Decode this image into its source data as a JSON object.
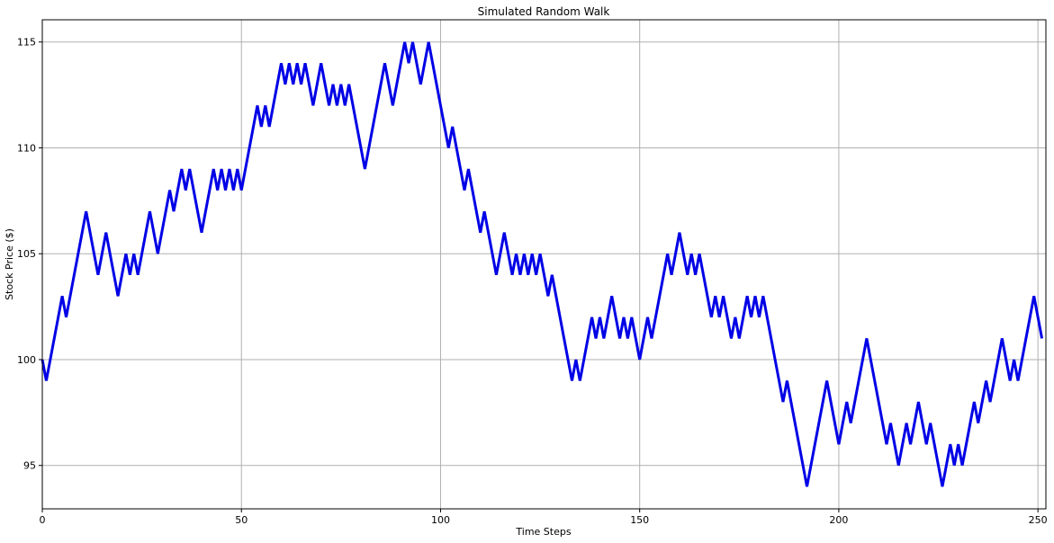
{
  "chart_data": {
    "type": "line",
    "title": "Simulated Random Walk",
    "x_label": "Time Steps",
    "y_label": "Stock Price ($)",
    "x": [
      0,
      1,
      2,
      3,
      4,
      5,
      6,
      7,
      8,
      9,
      10,
      11,
      12,
      13,
      14,
      15,
      16,
      17,
      18,
      19,
      20,
      21,
      22,
      23,
      24,
      25,
      26,
      27,
      28,
      29,
      30,
      31,
      32,
      33,
      34,
      35,
      36,
      37,
      38,
      39,
      40,
      41,
      42,
      43,
      44,
      45,
      46,
      47,
      48,
      49,
      50,
      51,
      52,
      53,
      54,
      55,
      56,
      57,
      58,
      59,
      60,
      61,
      62,
      63,
      64,
      65,
      66,
      67,
      68,
      69,
      70,
      71,
      72,
      73,
      74,
      75,
      76,
      77,
      78,
      79,
      80,
      81,
      82,
      83,
      84,
      85,
      86,
      87,
      88,
      89,
      90,
      91,
      92,
      93,
      94,
      95,
      96,
      97,
      98,
      99,
      100,
      101,
      102,
      103,
      104,
      105,
      106,
      107,
      108,
      109,
      110,
      111,
      112,
      113,
      114,
      115,
      116,
      117,
      118,
      119,
      120,
      121,
      122,
      123,
      124,
      125,
      126,
      127,
      128,
      129,
      130,
      131,
      132,
      133,
      134,
      135,
      136,
      137,
      138,
      139,
      140,
      141,
      142,
      143,
      144,
      145,
      146,
      147,
      148,
      149,
      150,
      151,
      152,
      153,
      154,
      155,
      156,
      157,
      158,
      159,
      160,
      161,
      162,
      163,
      164,
      165,
      166,
      167,
      168,
      169,
      170,
      171,
      172,
      173,
      174,
      175,
      176,
      177,
      178,
      179,
      180,
      181,
      182,
      183,
      184,
      185,
      186,
      187,
      188,
      189,
      190,
      191,
      192,
      193,
      194,
      195,
      196,
      197,
      198,
      199,
      200,
      201,
      202,
      203,
      204,
      205,
      206,
      207,
      208,
      209,
      210,
      211,
      212,
      213,
      214,
      215,
      216,
      217,
      218,
      219,
      220,
      221,
      222,
      223,
      224,
      225,
      226,
      227,
      228,
      229,
      230,
      231,
      232,
      233,
      234,
      235,
      236,
      237,
      238,
      239,
      240,
      241,
      242,
      243,
      244,
      245,
      246,
      247,
      248,
      249,
      250,
      251
    ],
    "values": [
      100,
      99,
      100,
      101,
      102,
      103,
      102,
      103,
      104,
      105,
      106,
      107,
      106,
      105,
      104,
      105,
      106,
      105,
      104,
      103,
      104,
      105,
      104,
      105,
      104,
      105,
      106,
      107,
      106,
      105,
      106,
      107,
      108,
      107,
      108,
      109,
      108,
      109,
      108,
      107,
      106,
      107,
      108,
      109,
      108,
      109,
      108,
      109,
      108,
      109,
      108,
      109,
      110,
      111,
      112,
      111,
      112,
      111,
      112,
      113,
      114,
      113,
      114,
      113,
      114,
      113,
      114,
      113,
      112,
      113,
      114,
      113,
      112,
      113,
      112,
      113,
      112,
      113,
      112,
      111,
      110,
      109,
      110,
      111,
      112,
      113,
      114,
      113,
      112,
      113,
      114,
      115,
      114,
      115,
      114,
      113,
      114,
      115,
      114,
      113,
      112,
      111,
      110,
      111,
      110,
      109,
      108,
      109,
      108,
      107,
      106,
      107,
      106,
      105,
      104,
      105,
      106,
      105,
      104,
      105,
      104,
      105,
      104,
      105,
      104,
      105,
      104,
      103,
      104,
      103,
      102,
      101,
      100,
      99,
      100,
      99,
      100,
      101,
      102,
      101,
      102,
      101,
      102,
      103,
      102,
      101,
      102,
      101,
      102,
      101,
      100,
      101,
      102,
      101,
      102,
      103,
      104,
      105,
      104,
      105,
      106,
      105,
      104,
      105,
      104,
      105,
      104,
      103,
      102,
      103,
      102,
      103,
      102,
      101,
      102,
      101,
      102,
      103,
      102,
      103,
      102,
      103,
      102,
      101,
      100,
      99,
      98,
      99,
      98,
      97,
      96,
      95,
      94,
      95,
      96,
      97,
      98,
      99,
      98,
      97,
      96,
      97,
      98,
      97,
      98,
      99,
      100,
      101,
      100,
      99,
      98,
      97,
      96,
      97,
      96,
      95,
      96,
      97,
      96,
      97,
      98,
      97,
      96,
      97,
      96,
      95,
      94,
      95,
      96,
      95,
      96,
      95,
      96,
      97,
      98,
      97,
      98,
      99,
      98,
      99,
      100,
      101,
      100,
      99,
      100,
      99,
      100,
      101,
      102,
      103,
      102,
      101
    ],
    "color": "#0000e6",
    "xlim": [
      0,
      252
    ],
    "ylim": [
      92.95,
      116.05
    ],
    "xticks": [
      0,
      50,
      100,
      150,
      200,
      250
    ],
    "yticks": [
      95,
      100,
      105,
      110,
      115
    ],
    "grid": true
  }
}
